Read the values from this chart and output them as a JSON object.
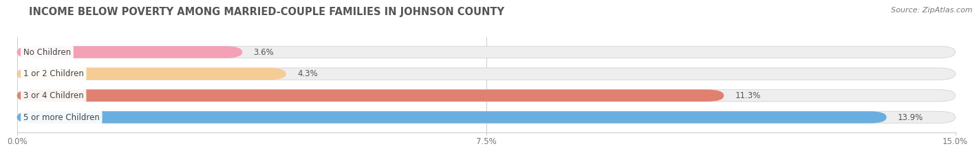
{
  "title": "INCOME BELOW POVERTY AMONG MARRIED-COUPLE FAMILIES IN JOHNSON COUNTY",
  "source": "Source: ZipAtlas.com",
  "categories": [
    "No Children",
    "1 or 2 Children",
    "3 or 4 Children",
    "5 or more Children"
  ],
  "values": [
    3.6,
    4.3,
    11.3,
    13.9
  ],
  "bar_colors": [
    "#f4a0b5",
    "#f5cc96",
    "#e08070",
    "#6aaee0"
  ],
  "xlim": [
    0,
    15.0
  ],
  "xticks": [
    0.0,
    7.5,
    15.0
  ],
  "xticklabels": [
    "0.0%",
    "7.5%",
    "15.0%"
  ],
  "bar_height": 0.55,
  "background_color": "#ffffff",
  "bar_bg_color": "#eeeeee",
  "title_fontsize": 10.5,
  "label_fontsize": 8.5,
  "tick_fontsize": 8.5,
  "source_fontsize": 8.0,
  "title_color": "#555555",
  "source_color": "#777777"
}
